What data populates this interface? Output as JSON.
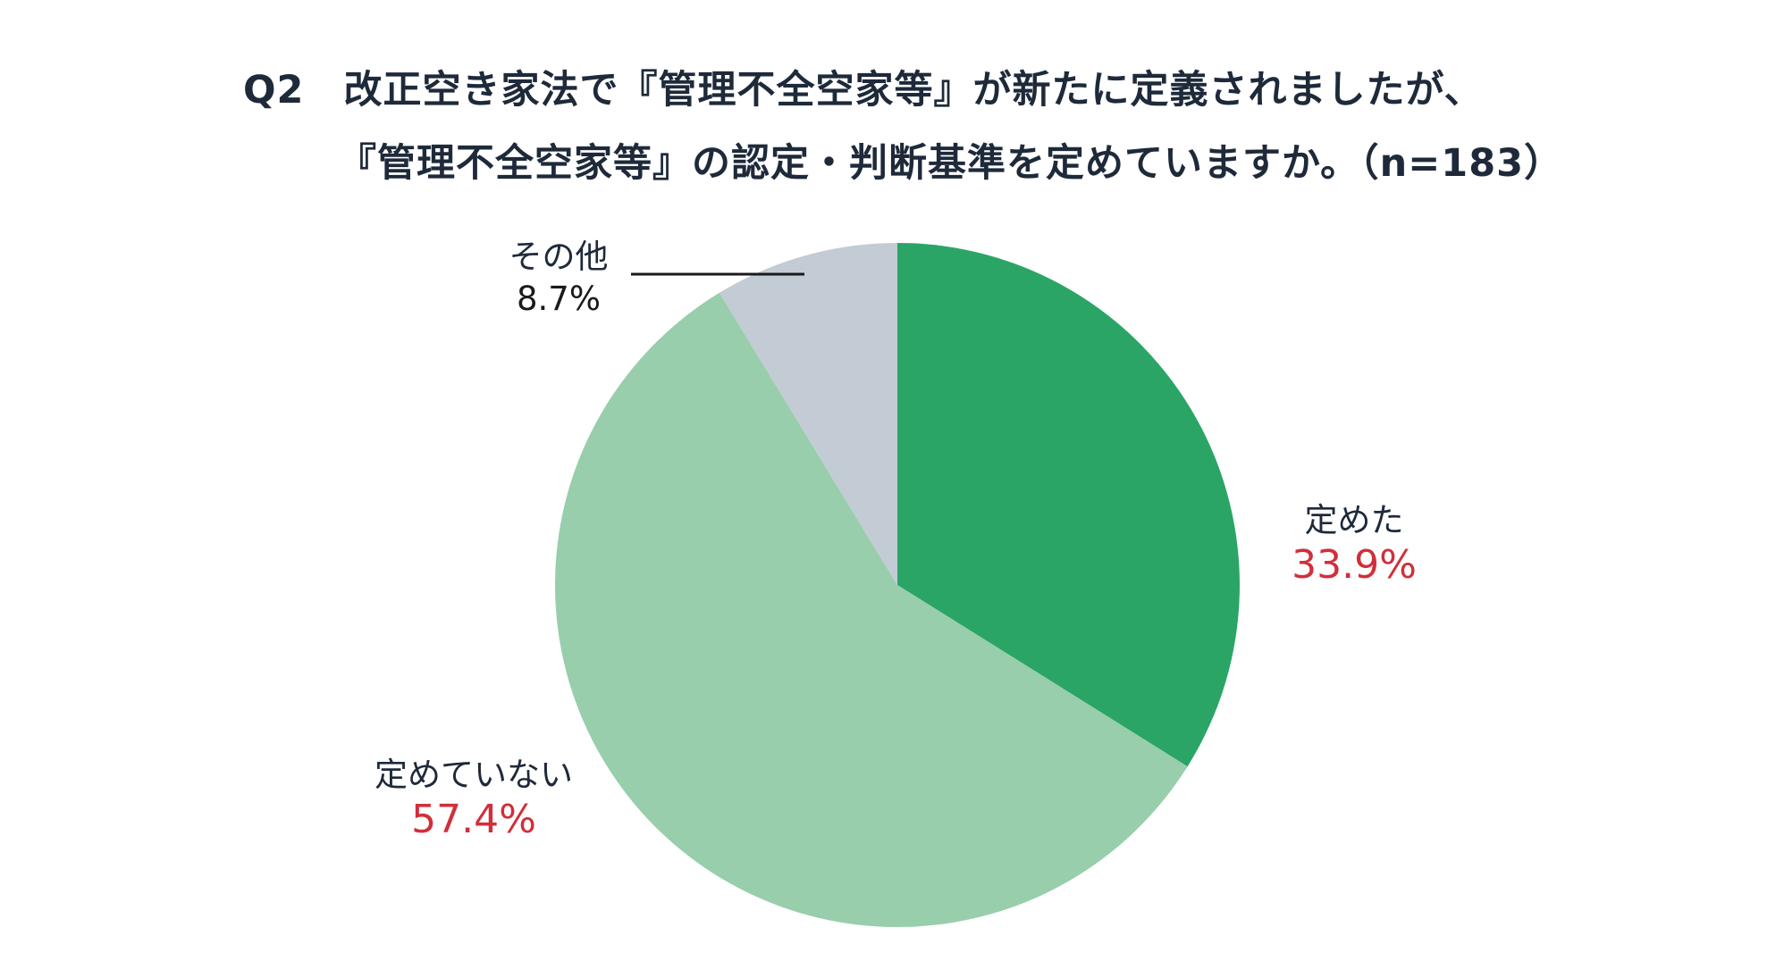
{
  "chart_data": {
    "type": "pie",
    "title": "Q2　改正空き家法で『管理不全空家等』が新たに定義されましたが、",
    "subtitle": "『管理不全空家等』の認定・判断基準を定めていますか。（n=183）",
    "sample_size": 183,
    "start_angle_deg": 0,
    "direction": "clockwise",
    "slices": [
      {
        "label": "定めた",
        "value": 33.9,
        "value_label": "33.9%",
        "color": "#2aa565",
        "value_color": "#d12f3a"
      },
      {
        "label": "定めていない",
        "value": 57.4,
        "value_label": "57.4%",
        "color": "#98ceab",
        "value_color": "#d12f3a"
      },
      {
        "label": "その他",
        "value": 8.7,
        "value_label": "8.7%",
        "color": "#c3cbd5",
        "value_color": "#1a1a1a"
      }
    ]
  }
}
